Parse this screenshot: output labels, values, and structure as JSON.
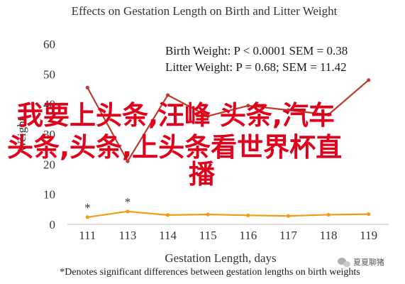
{
  "chart_data": {
    "type": "line",
    "title": "Effects on Gestation Length on Birth and Litter Weight",
    "xlabel": "Gestation Length, days",
    "ylabel": "Weight",
    "categories": [
      "111",
      "113",
      "114",
      "115",
      "116",
      "117",
      "118",
      "119"
    ],
    "ylim": [
      0,
      60
    ],
    "yticks": [
      0,
      10,
      20,
      30,
      40,
      50,
      60
    ],
    "grid": false,
    "series": [
      {
        "name": "Litter Weight",
        "color": "#c0392b",
        "values": [
          45.5,
          21,
          43,
          36,
          39.5,
          38,
          36.5,
          48
        ]
      },
      {
        "name": "Birth Weight",
        "color": "#f39c12",
        "values": [
          2.4,
          4.3,
          3.1,
          3.3,
          3.0,
          2.8,
          3.2,
          3.4
        ]
      }
    ],
    "significance_markers": [
      {
        "category": "111",
        "label": "*"
      },
      {
        "category": "113",
        "label": "*"
      }
    ],
    "stats_lines": [
      {
        "name": "Birth Weight",
        "p": "P < 0.0001",
        "sem": "SEM = 0.38"
      },
      {
        "name": "Litter Weight",
        "p": "P = 0.68",
        "sem": "SEM = 11.42"
      }
    ],
    "footnote": "*Denotes significant differences between gestation lengths on birth weights"
  },
  "overlay": {
    "lines": [
      "我要上头条,汪峰 头条,汽车",
      "头条,头条,上头条看世界杯直",
      "播"
    ],
    "color": "#e0001b"
  },
  "watermark": {
    "text": "夏夏聊猪",
    "icon": "wechat-icon"
  }
}
